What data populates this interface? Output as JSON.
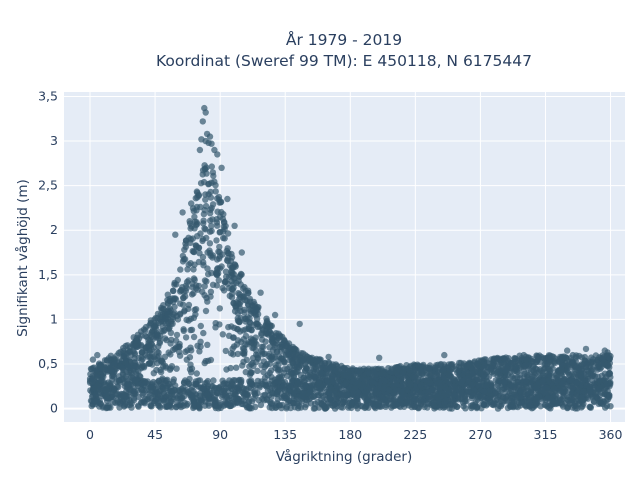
{
  "chart_data": {
    "type": "scatter",
    "title_lines": [
      "År 1979 - 2019",
      "Koordinat (Sweref 99 TM): E 450118, N 6175447"
    ],
    "xlabel": "Vågriktning (grader)",
    "ylabel": "Signifikant våghöjd (m)",
    "xlim": [
      -18,
      370
    ],
    "ylim": [
      -0.15,
      3.55
    ],
    "x_ticks": [
      0,
      45,
      90,
      135,
      180,
      225,
      270,
      315,
      360
    ],
    "x_tick_labels": [
      "0",
      "45",
      "90",
      "135",
      "180",
      "225",
      "270",
      "315",
      "360"
    ],
    "y_ticks": [
      0,
      0.5,
      1,
      1.5,
      2,
      2.5,
      3,
      3.5
    ],
    "y_tick_labels": [
      "0",
      "0,5",
      "1",
      "1,5",
      "2",
      "2,5",
      "3",
      "3,5"
    ],
    "grid": true,
    "marker_color": "#34586e",
    "background_color": "#e5ecf6",
    "envelope": {
      "x": [
        0,
        10,
        20,
        30,
        40,
        50,
        60,
        65,
        70,
        75,
        80,
        85,
        90,
        95,
        100,
        110,
        120,
        130,
        140,
        150,
        160,
        170,
        180,
        200,
        225,
        250,
        270,
        300,
        315,
        330,
        345,
        360
      ],
      "typical_max": [
        0.45,
        0.55,
        0.65,
        0.8,
        0.95,
        1.15,
        1.5,
        1.8,
        2.2,
        2.6,
        2.8,
        2.7,
        2.4,
        2.0,
        1.7,
        1.3,
        1.05,
        0.85,
        0.7,
        0.6,
        0.55,
        0.5,
        0.45,
        0.45,
        0.5,
        0.5,
        0.55,
        0.6,
        0.6,
        0.6,
        0.6,
        0.6
      ]
    },
    "notable_points": {
      "x": [
        79,
        80,
        78,
        81,
        83,
        77,
        82,
        84,
        80,
        76,
        86,
        88,
        91,
        95,
        100,
        70,
        64,
        59,
        66,
        105,
        118,
        128,
        145,
        165,
        200,
        245,
        287,
        300,
        330,
        343,
        356,
        358,
        2,
        5
      ],
      "y": [
        3.37,
        3.32,
        3.22,
        3.08,
        3.05,
        3.02,
        2.98,
        2.97,
        3.0,
        2.9,
        2.9,
        2.85,
        2.7,
        2.35,
        2.05,
        2.3,
        2.2,
        1.95,
        1.85,
        1.75,
        1.3,
        1.05,
        0.95,
        0.58,
        0.57,
        0.6,
        0.55,
        0.6,
        0.65,
        0.67,
        0.65,
        0.63,
        0.55,
        0.6
      ]
    }
  }
}
